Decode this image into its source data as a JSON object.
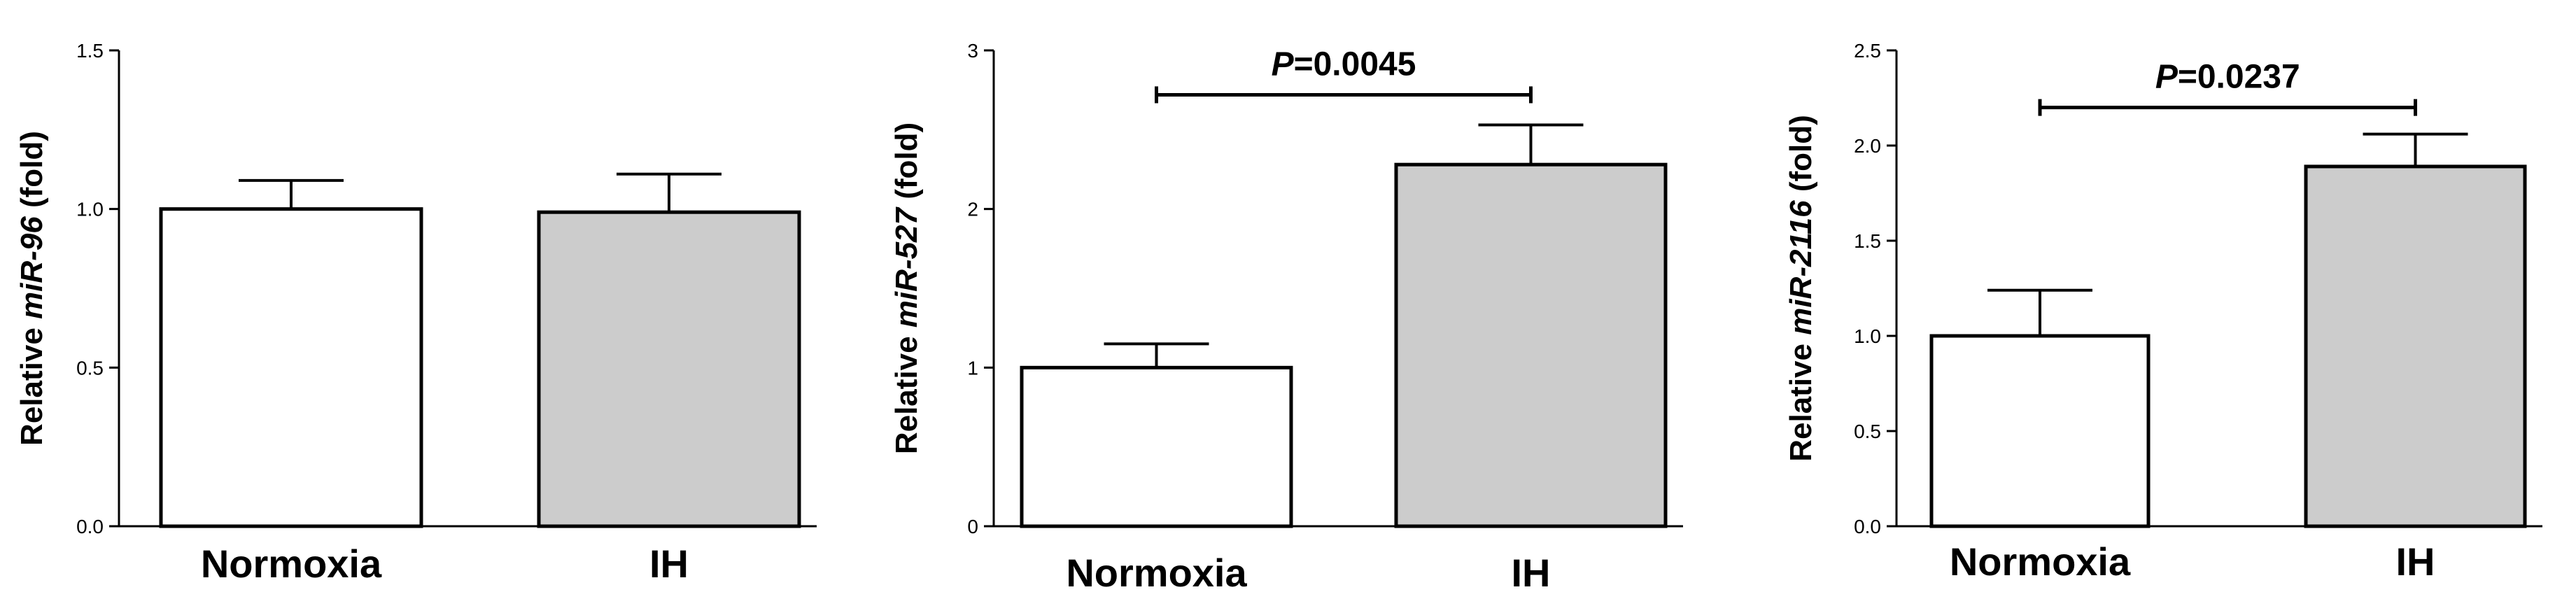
{
  "chart_data": [
    {
      "type": "bar",
      "categories": [
        "Normoxia",
        "IH"
      ],
      "values": [
        1.0,
        0.99
      ],
      "errors": [
        0.09,
        0.12
      ],
      "ylabel_prefix": "Relative ",
      "ylabel_gene": "miR-96",
      "ylabel_suffix": " (fold)",
      "ylim": [
        0,
        1.5
      ],
      "yticks": [
        0.0,
        0.5,
        1.0,
        1.5
      ],
      "ytick_labels": [
        "0.0",
        "0.5",
        "1.0",
        "1.5"
      ],
      "significance": null
    },
    {
      "type": "bar",
      "categories": [
        "Normoxia",
        "IH"
      ],
      "values": [
        1.0,
        2.28
      ],
      "errors": [
        0.15,
        0.25
      ],
      "ylabel_prefix": "Relative ",
      "ylabel_gene": "miR-527",
      "ylabel_suffix": " (fold)",
      "ylim": [
        0,
        3
      ],
      "yticks": [
        0,
        1,
        2,
        3
      ],
      "ytick_labels": [
        "0",
        "1",
        "2",
        "3"
      ],
      "significance": {
        "italic": "P",
        "text": "=0.0045",
        "level": 2.72
      }
    },
    {
      "type": "bar",
      "categories": [
        "Normoxia",
        "IH"
      ],
      "values": [
        1.0,
        1.89
      ],
      "errors": [
        0.24,
        0.17
      ],
      "ylabel_prefix": "Relative ",
      "ylabel_gene": "miR-2116",
      "ylabel_suffix": " (fold)",
      "ylim": [
        0,
        2.5
      ],
      "yticks": [
        0.0,
        0.5,
        1.0,
        1.5,
        2.0,
        2.5
      ],
      "ytick_labels": [
        "0.0",
        "0.5",
        "1.0",
        "1.5",
        "2.0",
        "2.5"
      ],
      "significance": {
        "italic": "P",
        "text": "=0.0237",
        "level": 2.2
      }
    }
  ],
  "colors": {
    "normoxia_fill": "#ffffff",
    "ih_fill": "#cccccc",
    "stroke": "#000000"
  }
}
